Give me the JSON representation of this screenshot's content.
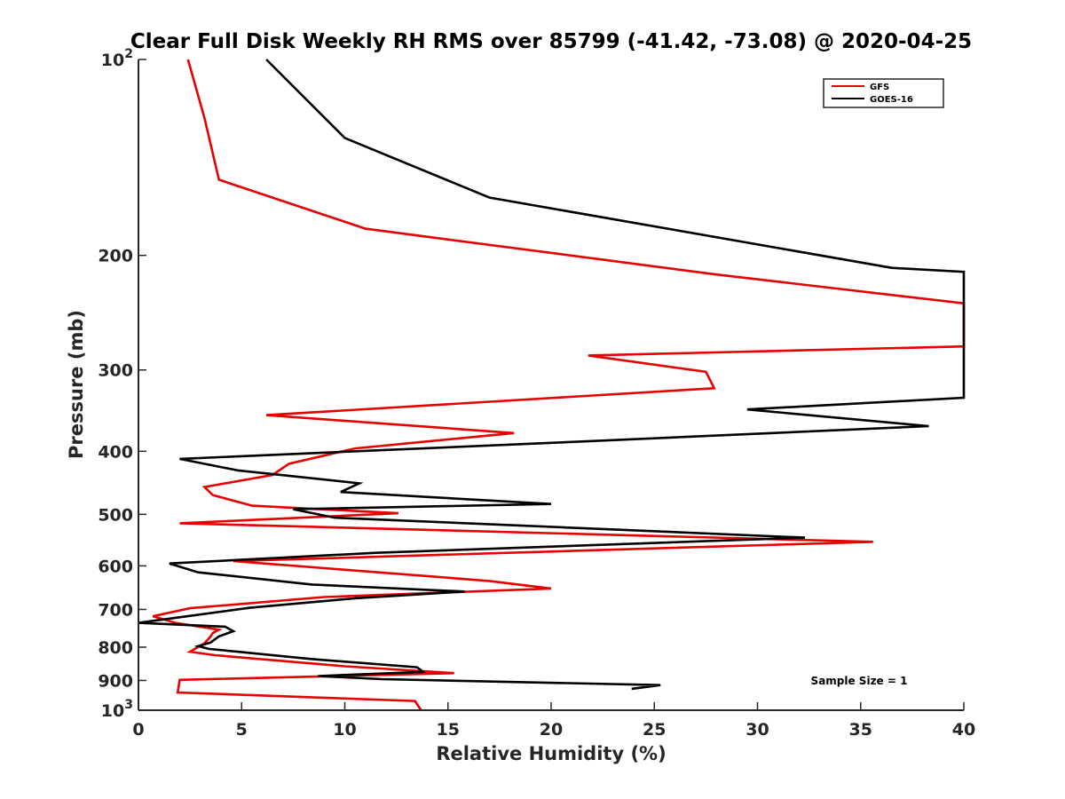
{
  "chart_data": {
    "type": "line",
    "title": "Clear Full Disk Weekly RH RMS over 85799 (-41.42, -73.08) @ 2020-04-25",
    "xlabel": "Relative Humidity (%)",
    "ylabel": "Pressure (mb)",
    "xlim": [
      0,
      40
    ],
    "ylim": [
      100,
      1000
    ],
    "y_scale": "log",
    "y_reversed": true,
    "x_ticks": [
      "0",
      "5",
      "10",
      "15",
      "20",
      "25",
      "30",
      "35",
      "40"
    ],
    "y_ticks": [
      {
        "value": 100,
        "base": "10",
        "exp": "2"
      },
      {
        "value": 200,
        "label": "200"
      },
      {
        "value": 300,
        "label": "300"
      },
      {
        "value": 400,
        "label": "400"
      },
      {
        "value": 500,
        "label": "500"
      },
      {
        "value": 600,
        "label": "600"
      },
      {
        "value": 700,
        "label": "700"
      },
      {
        "value": 800,
        "label": "800"
      },
      {
        "value": 900,
        "label": "900"
      },
      {
        "value": 1000,
        "base": "10",
        "exp": "3"
      }
    ],
    "grid": false,
    "legend_position": "top-right",
    "annotation": "Sample Size = 1",
    "series": [
      {
        "name": "GFS",
        "color": "#e60000",
        "points": [
          [
            2.4,
            100
          ],
          [
            3.2,
            123
          ],
          [
            3.9,
            153
          ],
          [
            11.0,
            182
          ],
          [
            28.0,
            214
          ],
          [
            40.0,
            237
          ],
          [
            40.0,
            276
          ],
          [
            21.8,
            285
          ],
          [
            27.5,
            302
          ],
          [
            27.9,
            320
          ],
          [
            6.2,
            352
          ],
          [
            18.2,
            375
          ],
          [
            10.5,
            396
          ],
          [
            7.3,
            418
          ],
          [
            6.5,
            435
          ],
          [
            3.2,
            454
          ],
          [
            3.6,
            467
          ],
          [
            5.5,
            485
          ],
          [
            12.6,
            498
          ],
          [
            2.0,
            516
          ],
          [
            35.6,
            551
          ],
          [
            4.6,
            590
          ],
          [
            17.0,
            633
          ],
          [
            20.0,
            650
          ],
          [
            9.0,
            670
          ],
          [
            2.5,
            697
          ],
          [
            0.7,
            717
          ],
          [
            1.8,
            734
          ],
          [
            3.9,
            752
          ],
          [
            3.6,
            761
          ],
          [
            3.5,
            770
          ],
          [
            3.2,
            789
          ],
          [
            2.5,
            813
          ],
          [
            3.7,
            823
          ],
          [
            10.0,
            856
          ],
          [
            15.3,
            877
          ],
          [
            2.0,
            898
          ],
          [
            1.9,
            939
          ],
          [
            13.4,
            968
          ],
          [
            13.7,
            1000
          ]
        ]
      },
      {
        "name": "GOES-16",
        "color": "#000000",
        "points": [
          [
            6.2,
            100
          ],
          [
            10.0,
            132
          ],
          [
            17.0,
            163
          ],
          [
            36.5,
            209
          ],
          [
            40.0,
            212
          ],
          [
            40.0,
            331
          ],
          [
            29.5,
            345
          ],
          [
            38.3,
            366
          ],
          [
            21.0,
            387
          ],
          [
            2.0,
            411
          ],
          [
            4.8,
            428
          ],
          [
            10.7,
            448
          ],
          [
            9.8,
            462
          ],
          [
            20.0,
            482
          ],
          [
            7.5,
            491
          ],
          [
            9.5,
            506
          ],
          [
            32.3,
            543
          ],
          [
            11.5,
            573
          ],
          [
            1.5,
            595
          ],
          [
            2.9,
            614
          ],
          [
            8.4,
            641
          ],
          [
            15.8,
            657
          ],
          [
            10.5,
            673
          ],
          [
            5.4,
            696
          ],
          [
            0.0,
            734
          ],
          [
            4.2,
            744
          ],
          [
            4.6,
            756
          ],
          [
            3.9,
            770
          ],
          [
            3.5,
            787
          ],
          [
            2.9,
            797
          ],
          [
            3.4,
            805
          ],
          [
            4.8,
            813
          ],
          [
            8.3,
            834
          ],
          [
            13.5,
            859
          ],
          [
            13.8,
            873
          ],
          [
            8.7,
            886
          ],
          [
            11.8,
            896
          ],
          [
            25.3,
            915
          ],
          [
            23.9,
            927
          ]
        ]
      }
    ]
  }
}
